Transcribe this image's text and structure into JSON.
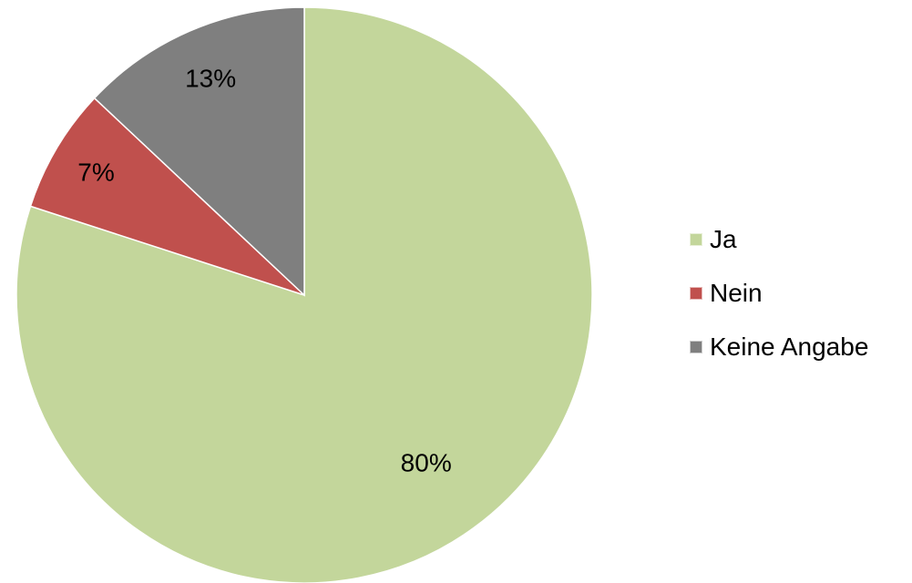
{
  "chart_data": {
    "type": "pie",
    "categories": [
      "Ja",
      "Nein",
      "Keine Angabe"
    ],
    "values": [
      80,
      7,
      13
    ],
    "data_labels": [
      "80%",
      "7%",
      "13%"
    ],
    "colors": [
      "#c3d69b",
      "#c0504d",
      "#7f7f7f"
    ],
    "start_angle_deg": 0,
    "direction": "clockwise",
    "legend_position": "right",
    "title": ""
  },
  "legend": {
    "items": [
      {
        "label": "Ja",
        "color": "#c3d69b"
      },
      {
        "label": "Nein",
        "color": "#c0504d"
      },
      {
        "label": "Keine Angabe",
        "color": "#7f7f7f"
      }
    ]
  }
}
